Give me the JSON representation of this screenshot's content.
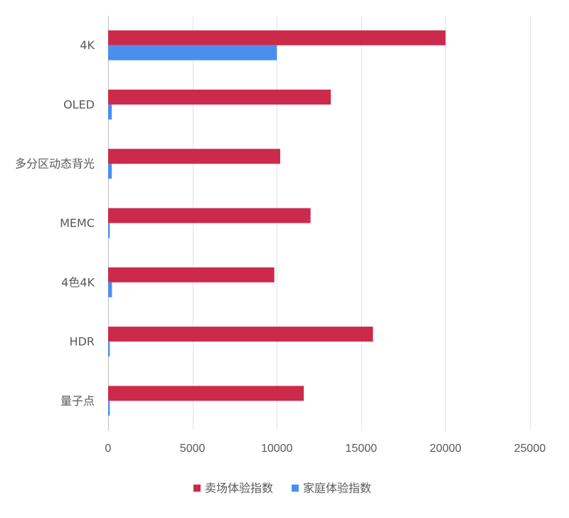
{
  "chart_data": {
    "type": "bar",
    "orientation": "horizontal",
    "categories": [
      "4K",
      "OLED",
      "多分区动态背光",
      "MEMC",
      "4色4K",
      "HDR",
      "量子点"
    ],
    "series": [
      {
        "name": "卖场体验指数",
        "color": "#CC2A4B",
        "values": [
          20000,
          13200,
          10200,
          12000,
          9850,
          15700,
          11600
        ]
      },
      {
        "name": "家庭体验指数",
        "color": "#4A8FEF",
        "values": [
          10000,
          220,
          220,
          100,
          230,
          100,
          100
        ]
      }
    ],
    "x_ticks": [
      "0",
      "5000",
      "10000",
      "15000",
      "20000",
      "25000"
    ],
    "xlim": [
      0,
      25000
    ],
    "grid": "vertical",
    "legend_position": "bottom-center"
  }
}
